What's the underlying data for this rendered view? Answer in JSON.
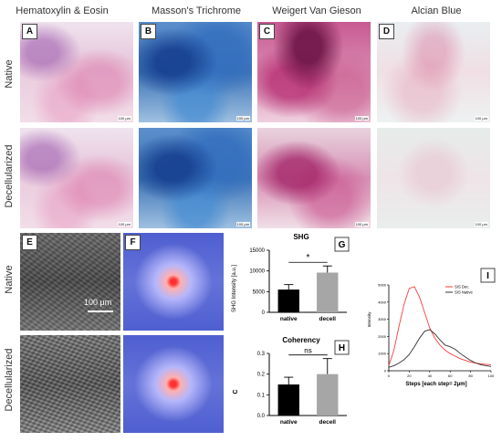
{
  "columns": [
    "Hematoxylin & Eosin",
    "Masson's Trichrome",
    "Weigert Van Gieson",
    "Alcian Blue"
  ],
  "rows": [
    "Native",
    "Decellularized"
  ],
  "panel_letters": [
    "A",
    "B",
    "C",
    "D",
    "E",
    "F",
    "G",
    "H",
    "I"
  ],
  "micro_scale": "100 μm",
  "shg_scale": "100 μm",
  "chart_data": [
    {
      "type": "bar",
      "title": "SHG",
      "panel": "G",
      "categories": [
        "native",
        "decell"
      ],
      "values": [
        5500,
        9600
      ],
      "errors": [
        1200,
        1600
      ],
      "colors": [
        "#000000",
        "#a6a6a6"
      ],
      "ylabel": "SHG Intensity [a.u.]",
      "ylim": [
        0,
        15000
      ],
      "yticks": [
        0,
        5000,
        10000,
        15000
      ],
      "significance": "*"
    },
    {
      "type": "bar",
      "title": "Coherency",
      "panel": "H",
      "categories": [
        "native",
        "decell"
      ],
      "values": [
        0.15,
        0.2
      ],
      "errors": [
        0.035,
        0.075
      ],
      "colors": [
        "#000000",
        "#a6a6a6"
      ],
      "ylabel": "C",
      "ylim": [
        0,
        0.3
      ],
      "yticks": [
        0.0,
        0.1,
        0.2,
        0.3
      ],
      "significance": "ns"
    },
    {
      "type": "line",
      "panel": "I",
      "xlabel": "Steps [each step= 2μm]",
      "ylabel": "Intensity",
      "xlim": [
        0,
        100
      ],
      "ylim": [
        0,
        5000
      ],
      "xticks": [
        0,
        20,
        40,
        60,
        80,
        100
      ],
      "yticks": [
        0,
        1000,
        2000,
        3000,
        4000,
        5000
      ],
      "legend_position": "top-right",
      "series": [
        {
          "name": "SIS Dec.",
          "color": "#ff3b3b",
          "x": [
            0,
            5,
            10,
            15,
            20,
            25,
            30,
            35,
            40,
            45,
            50,
            55,
            60,
            65,
            70,
            75,
            80,
            85,
            90,
            95,
            100
          ],
          "y": [
            300,
            1200,
            2600,
            3900,
            4800,
            4900,
            4300,
            3400,
            2500,
            1900,
            1500,
            1200,
            1000,
            850,
            700,
            600,
            500,
            450,
            400,
            380,
            350
          ]
        },
        {
          "name": "SIS Native",
          "color": "#333333",
          "x": [
            0,
            5,
            10,
            15,
            20,
            25,
            30,
            35,
            40,
            45,
            50,
            55,
            60,
            65,
            70,
            75,
            80,
            85,
            90,
            95,
            100
          ],
          "y": [
            200,
            300,
            450,
            650,
            950,
            1400,
            1900,
            2300,
            2400,
            2150,
            1800,
            1500,
            1400,
            1250,
            1000,
            800,
            600,
            450,
            350,
            300,
            250
          ]
        }
      ]
    }
  ]
}
